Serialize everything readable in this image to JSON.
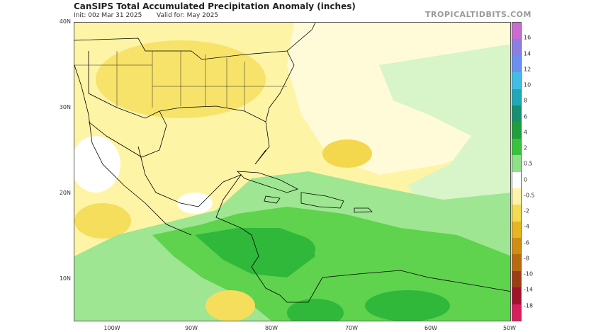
{
  "header": {
    "title": "CanSIPS Total Accumulated Precipitation Anomaly (inches)",
    "init": "Init: 00z Mar 31 2025",
    "valid": "Valid for: May 2025",
    "brand": "TROPICALTIDBITS.COM"
  },
  "map": {
    "lat_labels": [
      "40N",
      "30N",
      "20N",
      "10N"
    ],
    "lon_labels": [
      "100W",
      "90W",
      "80W",
      "70W",
      "60W",
      "50W"
    ],
    "extent": {
      "west": -105,
      "east": -50,
      "south": 5,
      "north": 40
    }
  },
  "colorbar": {
    "labels": [
      "16",
      "14",
      "12",
      "10",
      "8",
      "6",
      "4",
      "2",
      "0.5",
      "0",
      "-0.5",
      "-2",
      "-4",
      "-6",
      "-8",
      "-10",
      "-14",
      "-18"
    ],
    "colors": [
      "#c96bd1",
      "#8a7ee0",
      "#6a8ff0",
      "#3fbfe8",
      "#1fa8b8",
      "#168f70",
      "#1f9e3c",
      "#39c23c",
      "#8fe088",
      "#ffffff",
      "#fff4a8",
      "#f3dc52",
      "#e6b51f",
      "#d18c12",
      "#b86a10",
      "#9c3f14",
      "#a0142a",
      "#d81e5b"
    ]
  }
}
